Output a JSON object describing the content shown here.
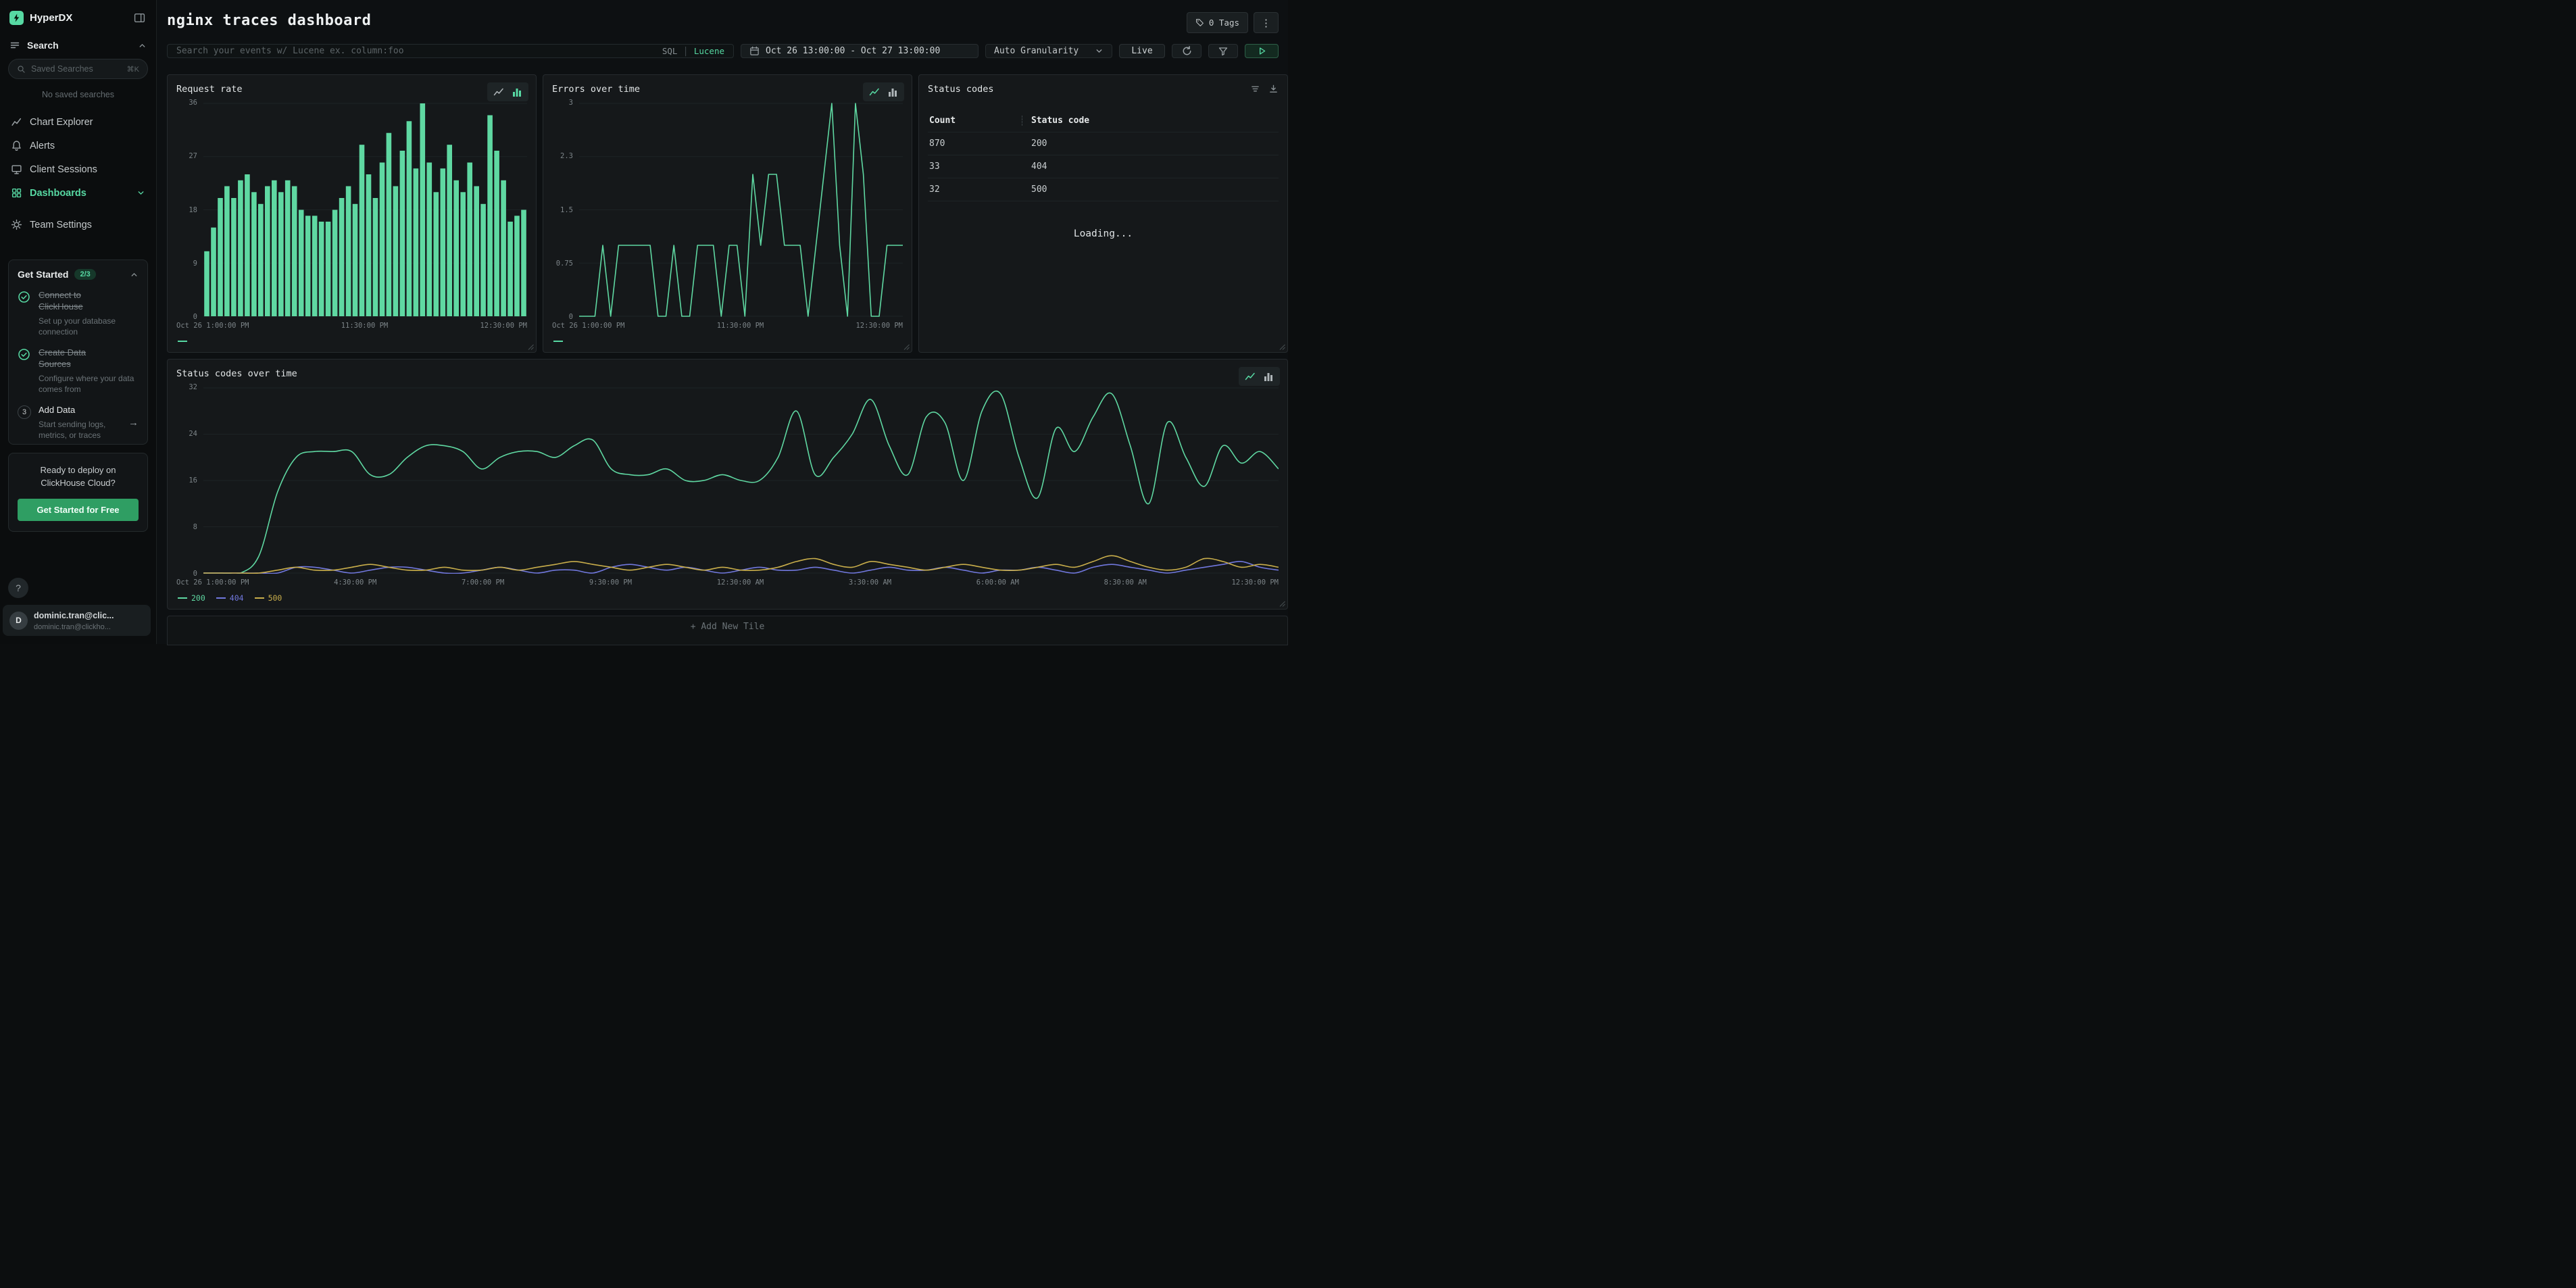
{
  "colors": {
    "accent": "#57d9a3"
  },
  "sidebar": {
    "app_name": "HyperDX",
    "search_section": "Search",
    "saved_search_placeholder": "Saved Searches",
    "saved_search_shortcut": "⌘K",
    "no_saved_searches": "No saved searches",
    "nav": [
      {
        "label": "Chart Explorer"
      },
      {
        "label": "Alerts"
      },
      {
        "label": "Client Sessions"
      },
      {
        "label": "Dashboards"
      },
      {
        "label": "Team Settings"
      }
    ],
    "get_started": {
      "title": "Get Started",
      "badge": "2/3",
      "steps": [
        {
          "title": "Connect to ClickHouse",
          "desc": "Set up your database connection"
        },
        {
          "title": "Create Data Sources",
          "desc": "Configure where your data comes from"
        },
        {
          "num": "3",
          "title": "Add Data",
          "desc": "Start sending logs, metrics, or traces",
          "arrow": "→"
        }
      ]
    },
    "deploy": {
      "line1": "Ready to deploy on",
      "line2": "ClickHouse Cloud?",
      "cta": "Get Started for Free"
    },
    "help_label": "?",
    "user": {
      "avatar_initial": "D",
      "name": "dominic.tran@clic...",
      "email": "dominic.tran@clickho..."
    }
  },
  "header": {
    "title": "nginx traces dashboard",
    "tags_label": "0 Tags",
    "menu_label": "⋮"
  },
  "toolbar": {
    "search_placeholder": "Search your events w/ Lucene ex. column:foo",
    "sql_label": "SQL",
    "divider": "|",
    "lucene_label": "Lucene",
    "date_range": "Oct 26 13:00:00 - Oct 27 13:00:00",
    "granularity": "Auto Granularity",
    "live_label": "Live"
  },
  "charts": {
    "request_rate": {
      "title": "Request rate",
      "type": "bar",
      "color": "#5fd8a2",
      "ymax": 36,
      "yticks": [
        "36",
        "27",
        "18",
        "9",
        "0"
      ],
      "xticks": [
        "Oct 26 1:00:00 PM",
        "11:30:00 PM",
        "12:30:00 PM"
      ],
      "values": [
        11,
        15,
        20,
        22,
        20,
        23,
        24,
        21,
        19,
        22,
        23,
        21,
        23,
        22,
        18,
        17,
        17,
        16,
        16,
        18,
        20,
        22,
        19,
        29,
        24,
        20,
        26,
        31,
        22,
        28,
        33,
        25,
        36,
        26,
        21,
        25,
        29,
        23,
        21,
        26,
        22,
        19,
        34,
        28,
        23,
        16,
        17,
        18
      ]
    },
    "errors": {
      "title": "Errors over time",
      "type": "line",
      "color": "#5fd8a2",
      "ymax": 3,
      "yticks": [
        "3",
        "2.3",
        "1.5",
        "0.75",
        "0"
      ],
      "xticks": [
        "Oct 26 1:00:00 PM",
        "11:30:00 PM",
        "12:30:00 PM"
      ],
      "values": [
        0,
        0,
        0,
        1,
        0,
        1,
        1,
        1,
        1,
        1,
        0,
        0,
        1,
        0,
        0,
        1,
        1,
        1,
        0,
        1,
        1,
        0,
        2,
        1,
        2,
        2,
        1,
        1,
        1,
        0,
        1,
        2,
        3,
        1,
        0,
        3,
        2,
        0,
        0,
        1,
        1,
        1
      ]
    },
    "status_over_time": {
      "title": "Status codes over time",
      "type": "line",
      "smooth": true,
      "ymax": 32,
      "yticks": [
        "32",
        "24",
        "16",
        "8",
        "0"
      ],
      "xticks": [
        "Oct 26 1:00:00 PM",
        "4:30:00 PM",
        "7:00:00 PM",
        "9:30:00 PM",
        "12:30:00 AM",
        "3:30:00 AM",
        "6:00:00 AM",
        "8:30:00 AM",
        "12:30:00 PM"
      ],
      "series": [
        {
          "label": "200",
          "color": "#5fd8a2",
          "values": [
            0,
            0,
            0,
            3,
            14,
            20,
            21,
            21,
            21,
            17,
            17,
            20,
            22,
            22,
            21,
            18,
            20,
            21,
            21,
            20,
            22,
            23,
            18,
            17,
            17,
            18,
            16,
            16,
            17,
            16,
            16,
            20,
            28,
            17,
            20,
            24,
            30,
            22,
            17,
            27,
            26,
            16,
            28,
            31,
            20,
            13,
            25,
            21,
            27,
            31,
            22,
            12,
            26,
            20,
            15,
            22,
            19,
            21,
            18
          ]
        },
        {
          "label": "404",
          "color": "#7178de",
          "values": [
            0,
            0,
            0,
            0,
            0,
            1,
            1,
            0.5,
            0,
            0.5,
            1,
            1,
            0.5,
            0,
            0,
            0.5,
            1,
            0.5,
            0,
            0.5,
            0.5,
            0,
            1,
            1.5,
            1,
            0.5,
            1,
            0.5,
            0,
            0.5,
            1,
            0.5,
            0.5,
            1,
            0.5,
            0,
            0.5,
            1,
            0.5,
            0.5,
            1,
            0.5,
            0,
            0.5,
            0.5,
            1,
            0.5,
            0,
            1,
            1.5,
            1,
            0.5,
            0,
            0.5,
            1,
            1.5,
            2,
            1,
            0.5
          ]
        },
        {
          "label": "500",
          "color": "#c9ae4b",
          "values": [
            0,
            0,
            0,
            0,
            0.5,
            1,
            0.5,
            0.5,
            1,
            1.5,
            1,
            0.5,
            0.5,
            1,
            0.5,
            0.5,
            1,
            0.5,
            1,
            1.5,
            2,
            1.5,
            1,
            0.5,
            1,
            1.5,
            1,
            0.5,
            1,
            0.5,
            0.5,
            1,
            2,
            2.5,
            1.5,
            1,
            2,
            1.5,
            1,
            0.5,
            1,
            1.5,
            1,
            0.5,
            0.5,
            1,
            1.5,
            1,
            2,
            3,
            2,
            1,
            0.5,
            1,
            2.5,
            2,
            1,
            1.5,
            1
          ]
        }
      ]
    }
  },
  "status_table": {
    "title": "Status codes",
    "headers": [
      "Count",
      "Status code"
    ],
    "rows": [
      [
        "870",
        "200"
      ],
      [
        "33",
        "404"
      ],
      [
        "32",
        "500"
      ]
    ],
    "loading": "Loading..."
  },
  "add_tile_label": "+ Add New Tile"
}
